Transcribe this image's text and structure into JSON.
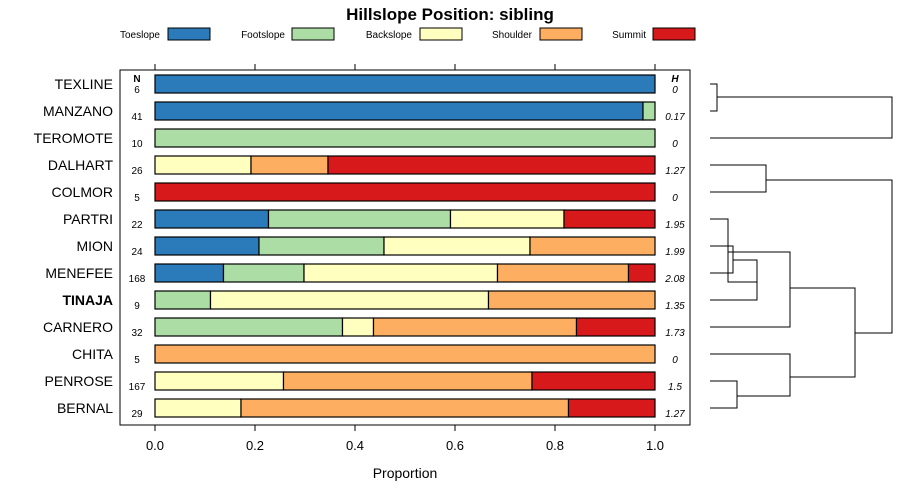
{
  "chart_data": {
    "type": "bar",
    "orientation": "horizontal",
    "stacked": true,
    "title": "Hillslope Position: sibling",
    "xlabel": "Proportion",
    "ylabel": "",
    "xlim": [
      0,
      1
    ],
    "xticks": [
      "0.0",
      "0.2",
      "0.4",
      "0.6",
      "0.8",
      "1.0"
    ],
    "n_header": "N",
    "h_header": "H",
    "highlight": "TINAJA",
    "series": [
      {
        "name": "Toeslope",
        "color": "#2b7bba"
      },
      {
        "name": "Footslope",
        "color": "#abdda4"
      },
      {
        "name": "Backslope",
        "color": "#ffffbf"
      },
      {
        "name": "Shoulder",
        "color": "#fdae61"
      },
      {
        "name": "Summit",
        "color": "#d7191c"
      }
    ],
    "rows": [
      {
        "label": "TEXLINE",
        "n": "6",
        "h": "0",
        "values": [
          1.0,
          0,
          0,
          0,
          0
        ]
      },
      {
        "label": "MANZANO",
        "n": "41",
        "h": "0.17",
        "values": [
          0.976,
          0.024,
          0,
          0,
          0
        ]
      },
      {
        "label": "TEROMOTE",
        "n": "10",
        "h": "0",
        "values": [
          0,
          1.0,
          0,
          0,
          0
        ]
      },
      {
        "label": "DALHART",
        "n": "26",
        "h": "1.27",
        "values": [
          0,
          0,
          0.192,
          0.154,
          0.654
        ]
      },
      {
        "label": "COLMOR",
        "n": "5",
        "h": "0",
        "values": [
          0,
          0,
          0,
          0,
          1.0
        ]
      },
      {
        "label": "PARTRI",
        "n": "22",
        "h": "1.95",
        "values": [
          0.227,
          0.364,
          0.227,
          0,
          0.182
        ]
      },
      {
        "label": "MION",
        "n": "24",
        "h": "1.99",
        "values": [
          0.208,
          0.25,
          0.292,
          0.25,
          0
        ]
      },
      {
        "label": "MENEFEE",
        "n": "168",
        "h": "2.08",
        "values": [
          0.137,
          0.161,
          0.387,
          0.262,
          0.053
        ]
      },
      {
        "label": "TINAJA",
        "n": "9",
        "h": "1.35",
        "values": [
          0,
          0.111,
          0.556,
          0.333,
          0
        ]
      },
      {
        "label": "CARNERO",
        "n": "32",
        "h": "1.73",
        "values": [
          0,
          0.375,
          0.062,
          0.406,
          0.157
        ]
      },
      {
        "label": "CHITA",
        "n": "5",
        "h": "0",
        "values": [
          0,
          0,
          0,
          1.0,
          0
        ]
      },
      {
        "label": "PENROSE",
        "n": "167",
        "h": "1.5",
        "values": [
          0,
          0,
          0.257,
          0.497,
          0.246
        ]
      },
      {
        "label": "BERNAL",
        "n": "29",
        "h": "1.27",
        "values": [
          0,
          0,
          0.172,
          0.655,
          0.173
        ]
      }
    ]
  }
}
